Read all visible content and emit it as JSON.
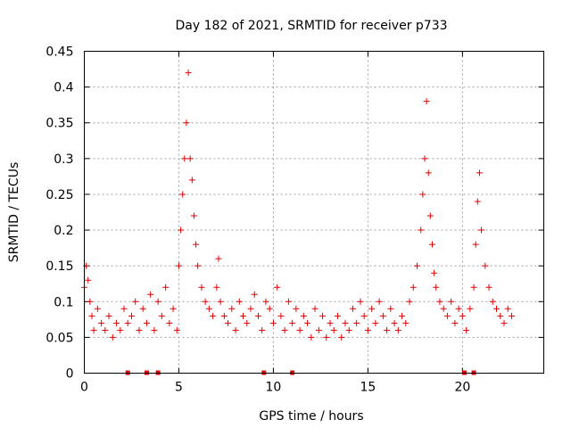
{
  "chart_data": {
    "type": "scatter",
    "title": "Day 182 of 2021, SRMTID for receiver p733",
    "xlabel": "GPS time / hours",
    "ylabel": "SRMTID / TECUs",
    "xlim": [
      0,
      24.3
    ],
    "ylim": [
      0,
      0.45
    ],
    "xticks": [
      0,
      5,
      10,
      15,
      20
    ],
    "xtick_labels": [
      "0",
      "5",
      "10",
      "15",
      "20"
    ],
    "yticks": [
      0,
      0.05,
      0.1,
      0.15,
      0.2,
      0.25,
      0.3,
      0.35,
      0.4,
      0.45
    ],
    "ytick_labels": [
      "0",
      "0.05",
      "0.1",
      "0.15",
      "0.2",
      "0.25",
      "0.3",
      "0.35",
      "0.4",
      "0.45"
    ],
    "grid": true,
    "marker": "+",
    "color": "#e00000",
    "zero_points_x": [
      2.3,
      3.3,
      3.9,
      9.5,
      11.0,
      20.1,
      20.6
    ],
    "series": [
      {
        "name": "SRMTID",
        "x": [
          0.0,
          0.1,
          0.2,
          0.3,
          0.4,
          0.5,
          0.7,
          0.9,
          1.1,
          1.3,
          1.5,
          1.7,
          1.9,
          2.1,
          2.3,
          2.5,
          2.7,
          2.9,
          3.1,
          3.3,
          3.5,
          3.7,
          3.9,
          4.1,
          4.3,
          4.5,
          4.7,
          4.9,
          5.0,
          5.1,
          5.2,
          5.3,
          5.4,
          5.5,
          5.6,
          5.7,
          5.8,
          5.9,
          6.0,
          6.2,
          6.4,
          6.6,
          6.8,
          7.0,
          7.1,
          7.2,
          7.4,
          7.6,
          7.8,
          8.0,
          8.2,
          8.4,
          8.6,
          8.8,
          9.0,
          9.2,
          9.4,
          9.6,
          9.8,
          10.0,
          10.2,
          10.4,
          10.6,
          10.8,
          11.0,
          11.2,
          11.4,
          11.6,
          11.8,
          12.0,
          12.2,
          12.4,
          12.6,
          12.8,
          13.0,
          13.2,
          13.4,
          13.6,
          13.8,
          14.0,
          14.2,
          14.4,
          14.6,
          14.8,
          15.0,
          15.2,
          15.4,
          15.6,
          15.8,
          16.0,
          16.2,
          16.4,
          16.6,
          16.8,
          17.0,
          17.2,
          17.4,
          17.6,
          17.8,
          17.9,
          18.0,
          18.1,
          18.2,
          18.3,
          18.4,
          18.5,
          18.6,
          18.8,
          19.0,
          19.2,
          19.4,
          19.6,
          19.8,
          20.0,
          20.2,
          20.4,
          20.6,
          20.7,
          20.8,
          20.9,
          21.0,
          21.2,
          21.4,
          21.6,
          21.8,
          22.0,
          22.2,
          22.4,
          22.6
        ],
        "y": [
          0.12,
          0.15,
          0.13,
          0.1,
          0.08,
          0.06,
          0.09,
          0.07,
          0.06,
          0.08,
          0.05,
          0.07,
          0.06,
          0.09,
          0.07,
          0.08,
          0.1,
          0.06,
          0.09,
          0.07,
          0.11,
          0.06,
          0.1,
          0.08,
          0.12,
          0.07,
          0.09,
          0.06,
          0.15,
          0.2,
          0.25,
          0.3,
          0.35,
          0.42,
          0.3,
          0.27,
          0.22,
          0.18,
          0.15,
          0.12,
          0.1,
          0.09,
          0.08,
          0.12,
          0.16,
          0.1,
          0.08,
          0.07,
          0.09,
          0.06,
          0.1,
          0.08,
          0.07,
          0.09,
          0.11,
          0.08,
          0.06,
          0.1,
          0.09,
          0.07,
          0.12,
          0.08,
          0.06,
          0.1,
          0.07,
          0.09,
          0.06,
          0.08,
          0.07,
          0.05,
          0.09,
          0.06,
          0.08,
          0.05,
          0.07,
          0.06,
          0.08,
          0.05,
          0.07,
          0.06,
          0.09,
          0.07,
          0.1,
          0.08,
          0.06,
          0.09,
          0.07,
          0.1,
          0.08,
          0.06,
          0.09,
          0.07,
          0.06,
          0.08,
          0.07,
          0.1,
          0.12,
          0.15,
          0.2,
          0.25,
          0.3,
          0.38,
          0.28,
          0.22,
          0.18,
          0.14,
          0.12,
          0.1,
          0.09,
          0.08,
          0.1,
          0.07,
          0.09,
          0.08,
          0.06,
          0.09,
          0.12,
          0.18,
          0.24,
          0.28,
          0.2,
          0.15,
          0.12,
          0.1,
          0.09,
          0.08,
          0.07,
          0.09,
          0.08
        ]
      }
    ]
  }
}
